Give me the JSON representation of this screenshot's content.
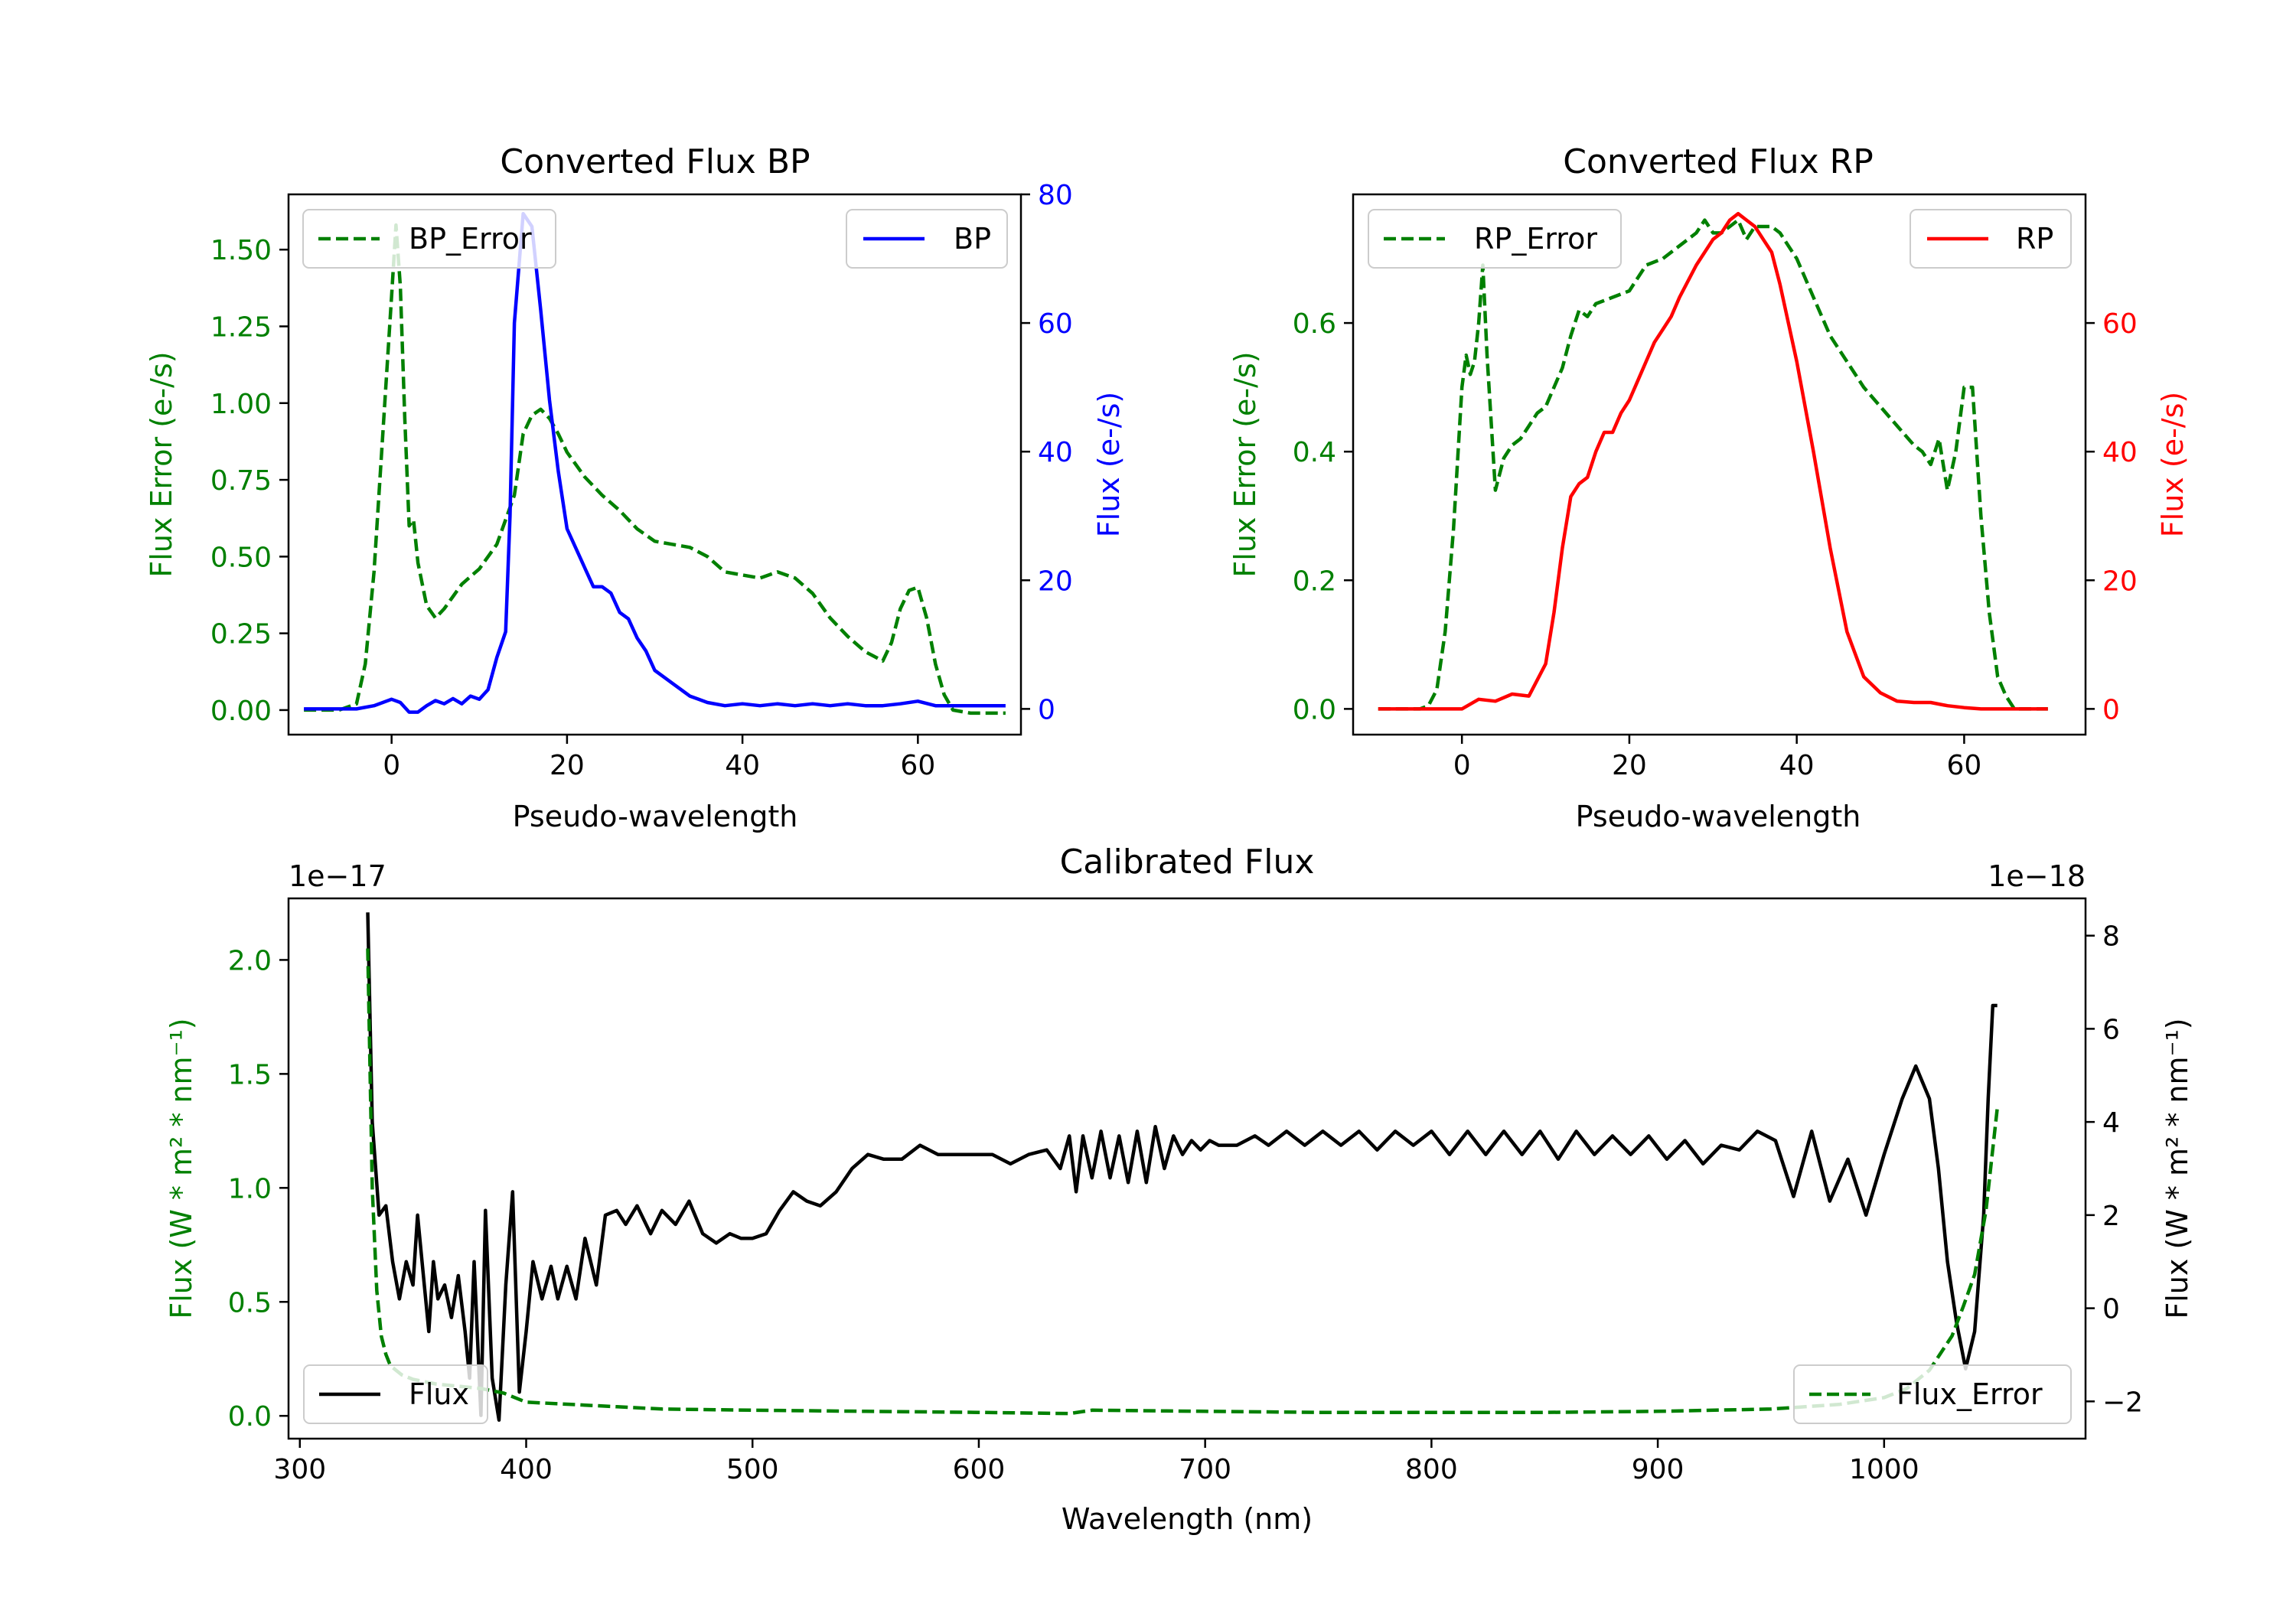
{
  "colors": {
    "error": "#008000",
    "bp": "#0000ff",
    "rp": "#ff0000",
    "flux": "#000000"
  },
  "chart_data": [
    {
      "type": "line",
      "title": "Converted Flux BP",
      "xlabel": "Pseudo-wavelength",
      "ylabel_left": "Flux Error (e-/s)",
      "ylabel_right": "Flux (e-/s)",
      "xlim": [
        -11.75,
        71.75
      ],
      "ylim_left": [
        -0.08,
        1.68
      ],
      "ylim_right": [
        -4,
        80
      ],
      "xticks": [
        "0",
        "20",
        "40",
        "60"
      ],
      "yticks_left": [
        "0.00",
        "0.25",
        "0.50",
        "0.75",
        "1.00",
        "1.25",
        "1.50"
      ],
      "yticks_right": [
        "0",
        "20",
        "40",
        "60",
        "80"
      ],
      "legend_left": "BP_Error",
      "legend_right": "BP",
      "series": [
        {
          "name": "BP_Error",
          "axis": "left",
          "style": "dashed",
          "x": [
            -10,
            -6,
            -4,
            -3,
            -2,
            -1,
            0,
            0.5,
            1,
            1.5,
            2,
            2.5,
            3,
            4,
            5,
            6,
            7,
            8,
            10,
            12,
            14,
            15,
            16,
            17,
            18,
            19,
            20,
            22,
            24,
            26,
            28,
            30,
            32,
            34,
            36,
            38,
            40,
            42,
            44,
            46,
            48,
            50,
            52,
            54,
            56,
            57,
            58,
            59,
            60,
            61,
            62,
            63,
            64,
            66,
            68,
            70
          ],
          "y": [
            0.0,
            0.0,
            0.02,
            0.15,
            0.45,
            0.9,
            1.35,
            1.58,
            1.38,
            0.95,
            0.6,
            0.62,
            0.48,
            0.34,
            0.3,
            0.33,
            0.37,
            0.41,
            0.46,
            0.54,
            0.7,
            0.9,
            0.96,
            0.98,
            0.95,
            0.9,
            0.84,
            0.76,
            0.7,
            0.65,
            0.59,
            0.55,
            0.54,
            0.53,
            0.5,
            0.45,
            0.44,
            0.43,
            0.45,
            0.43,
            0.38,
            0.3,
            0.24,
            0.19,
            0.16,
            0.22,
            0.33,
            0.39,
            0.4,
            0.3,
            0.15,
            0.05,
            0.0,
            -0.01,
            -0.01,
            -0.01
          ]
        },
        {
          "name": "BP",
          "axis": "right",
          "style": "solid",
          "x": [
            -10,
            -4,
            -2,
            0,
            1,
            2,
            3,
            4,
            5,
            6,
            7,
            8,
            9,
            10,
            11,
            12,
            13,
            13.5,
            14,
            15,
            16,
            17,
            18,
            19,
            20,
            21,
            22,
            23,
            24,
            25,
            26,
            27,
            28,
            29,
            30,
            31,
            32,
            33,
            34,
            35,
            36,
            38,
            40,
            42,
            44,
            46,
            48,
            50,
            52,
            54,
            56,
            58,
            60,
            62,
            64,
            66,
            68,
            70
          ],
          "y": [
            0,
            0,
            0.5,
            1.5,
            1,
            -0.5,
            -0.5,
            0.5,
            1.3,
            0.8,
            1.6,
            0.8,
            2.0,
            1.5,
            3.0,
            8.0,
            12.0,
            30,
            60,
            77,
            75,
            62,
            48,
            37,
            28,
            25,
            22,
            19,
            19,
            18,
            15,
            14,
            11,
            9,
            6,
            5,
            4,
            3,
            2,
            1.5,
            1,
            0.5,
            0.8,
            0.5,
            0.8,
            0.5,
            0.8,
            0.5,
            0.8,
            0.5,
            0.5,
            0.8,
            1.2,
            0.5,
            0.5,
            0.5,
            0.5,
            0.5
          ]
        }
      ]
    },
    {
      "type": "line",
      "title": "Converted Flux RP",
      "xlabel": "Pseudo-wavelength",
      "ylabel_left": "Flux Error (e-/s)",
      "ylabel_right": "Flux (e-/s)",
      "xlim": [
        -13.0,
        74.5
      ],
      "ylim_left": [
        -0.04,
        0.8
      ],
      "ylim_right": [
        -4,
        80
      ],
      "xticks": [
        "0",
        "20",
        "40",
        "60"
      ],
      "yticks_left": [
        "0.0",
        "0.2",
        "0.4",
        "0.6"
      ],
      "yticks_right": [
        "0",
        "20",
        "40",
        "60"
      ],
      "legend_left": "RP_Error",
      "legend_right": "RP",
      "series": [
        {
          "name": "RP_Error",
          "axis": "left",
          "style": "dashed",
          "x": [
            -10,
            -5,
            -4,
            -3,
            -2,
            -1,
            0,
            0.5,
            1,
            1.5,
            2,
            2.5,
            3,
            4,
            5,
            6,
            7,
            8,
            9,
            10,
            11,
            12,
            13,
            14,
            15,
            16,
            18,
            20,
            22,
            24,
            26,
            28,
            29,
            30,
            31,
            32,
            33,
            34,
            35,
            36,
            37,
            38,
            39,
            40,
            42,
            44,
            46,
            48,
            50,
            52,
            54,
            55,
            56,
            57,
            58,
            59,
            60,
            61,
            62,
            63,
            64,
            65,
            66,
            68,
            70
          ],
          "y": [
            0,
            0,
            0.005,
            0.03,
            0.12,
            0.28,
            0.5,
            0.55,
            0.52,
            0.54,
            0.6,
            0.69,
            0.55,
            0.34,
            0.39,
            0.41,
            0.42,
            0.44,
            0.46,
            0.47,
            0.5,
            0.53,
            0.58,
            0.62,
            0.61,
            0.63,
            0.64,
            0.65,
            0.69,
            0.7,
            0.72,
            0.74,
            0.76,
            0.74,
            0.74,
            0.75,
            0.76,
            0.73,
            0.75,
            0.75,
            0.75,
            0.74,
            0.72,
            0.7,
            0.64,
            0.58,
            0.54,
            0.5,
            0.47,
            0.44,
            0.41,
            0.4,
            0.38,
            0.42,
            0.34,
            0.4,
            0.5,
            0.5,
            0.3,
            0.15,
            0.05,
            0.02,
            0,
            0,
            0
          ]
        },
        {
          "name": "RP",
          "axis": "right",
          "style": "solid",
          "x": [
            -10,
            -5,
            0,
            2,
            4,
            6,
            8,
            10,
            11,
            12,
            13,
            14,
            15,
            16,
            17,
            18,
            19,
            20,
            21,
            22,
            23,
            24,
            25,
            26,
            28,
            30,
            31,
            32,
            33,
            34,
            35,
            36,
            37,
            38,
            40,
            42,
            44,
            46,
            48,
            50,
            52,
            54,
            56,
            58,
            60,
            62,
            64,
            66,
            70
          ],
          "y": [
            0,
            0,
            0,
            1.5,
            1.2,
            2.3,
            2.0,
            7,
            15,
            25,
            33,
            35,
            36,
            40,
            43,
            43,
            46,
            48,
            51,
            54,
            57,
            59,
            61,
            64,
            69,
            73,
            74,
            76,
            77,
            76,
            75,
            73,
            71,
            66,
            54,
            40,
            25,
            12,
            5,
            2.5,
            1.2,
            1,
            1,
            0.5,
            0.2,
            0,
            0,
            0,
            0
          ]
        }
      ]
    },
    {
      "type": "line",
      "title": "Calibrated Flux",
      "xlabel": "Wavelength (nm)",
      "ylabel_left": "Flux (W * m² * nm⁻¹)",
      "ylabel_right": "Flux (W * m² * nm⁻¹)",
      "offset_left": "1e−17",
      "offset_right": "1e−18",
      "xlim": [
        295,
        1089
      ],
      "ylim_left": [
        -0.1,
        2.27
      ],
      "ylim_right": [
        -2.8,
        8.8
      ],
      "xticks": [
        "300",
        "400",
        "500",
        "600",
        "700",
        "800",
        "900",
        "1000"
      ],
      "yticks_left": [
        "0.0",
        "0.5",
        "1.0",
        "1.5",
        "2.0"
      ],
      "yticks_right": [
        "−2",
        "0",
        "2",
        "4",
        "6",
        "8"
      ],
      "legend_left": "Flux",
      "legend_right": "Flux_Error",
      "series": [
        {
          "name": "Flux",
          "axis": "right",
          "style": "solid",
          "x": [
            330,
            332,
            335,
            338,
            341,
            344,
            347,
            350,
            352,
            355,
            357,
            359,
            361,
            364,
            367,
            370,
            373,
            375,
            377,
            380,
            382,
            385,
            388,
            391,
            394,
            397,
            400,
            403,
            407,
            411,
            414,
            418,
            422,
            426,
            431,
            435,
            440,
            444,
            449,
            455,
            460,
            466,
            472,
            478,
            484,
            490,
            495,
            500,
            506,
            512,
            518,
            524,
            530,
            537,
            544,
            551,
            558,
            566,
            574,
            582,
            590,
            598,
            606,
            614,
            622,
            630,
            636,
            640,
            643,
            646,
            650,
            654,
            658,
            662,
            666,
            670,
            674,
            678,
            682,
            686,
            690,
            694,
            698,
            702,
            706,
            710,
            714,
            718,
            722,
            728,
            736,
            744,
            752,
            760,
            768,
            776,
            784,
            792,
            800,
            808,
            816,
            824,
            832,
            840,
            848,
            856,
            864,
            872,
            880,
            888,
            896,
            904,
            912,
            920,
            928,
            936,
            944,
            952,
            960,
            968,
            976,
            984,
            992,
            1000,
            1008,
            1014,
            1020,
            1024,
            1028,
            1032,
            1036,
            1040,
            1044,
            1046,
            1048,
            1050
          ],
          "y": [
            8.5,
            4,
            2,
            2.2,
            1,
            0.2,
            1,
            0.5,
            2,
            0.5,
            -0.5,
            1,
            0.2,
            0.5,
            -0.2,
            0.7,
            -0.5,
            -1.5,
            1,
            -2.3,
            2.1,
            -1.5,
            -2.4,
            0.5,
            2.5,
            -1.8,
            -0.5,
            1,
            0.2,
            0.9,
            0.2,
            0.9,
            0.2,
            1.5,
            0.5,
            2,
            2.1,
            1.8,
            2.2,
            1.6,
            2.1,
            1.8,
            2.3,
            1.6,
            1.4,
            1.6,
            1.5,
            1.5,
            1.6,
            2.1,
            2.5,
            2.3,
            2.2,
            2.5,
            3.0,
            3.3,
            3.2,
            3.2,
            3.5,
            3.3,
            3.3,
            3.3,
            3.3,
            3.1,
            3.3,
            3.4,
            3.0,
            3.7,
            2.5,
            3.7,
            2.8,
            3.8,
            2.8,
            3.7,
            2.7,
            3.8,
            2.7,
            3.9,
            3.0,
            3.7,
            3.3,
            3.6,
            3.4,
            3.6,
            3.5,
            3.5,
            3.5,
            3.6,
            3.7,
            3.5,
            3.8,
            3.5,
            3.8,
            3.5,
            3.8,
            3.4,
            3.8,
            3.5,
            3.8,
            3.3,
            3.8,
            3.3,
            3.8,
            3.3,
            3.8,
            3.2,
            3.8,
            3.3,
            3.7,
            3.3,
            3.7,
            3.2,
            3.6,
            3.1,
            3.5,
            3.4,
            3.8,
            3.6,
            2.4,
            3.8,
            2.3,
            3.2,
            2.0,
            3.3,
            4.5,
            5.2,
            4.5,
            3.0,
            1.0,
            -0.3,
            -1.3,
            -0.5,
            2.0,
            4.5,
            6.5,
            6.5
          ]
        },
        {
          "name": "Flux_Error",
          "axis": "left",
          "style": "dashed",
          "x": [
            330,
            332,
            334,
            336,
            338,
            340,
            345,
            350,
            360,
            370,
            380,
            390,
            400,
            420,
            440,
            460,
            500,
            550,
            600,
            640,
            650,
            700,
            750,
            800,
            850,
            900,
            950,
            980,
            1000,
            1010,
            1020,
            1030,
            1035,
            1040,
            1045,
            1050
          ],
          "y": [
            2.05,
            1.0,
            0.55,
            0.35,
            0.27,
            0.22,
            0.18,
            0.16,
            0.14,
            0.13,
            0.12,
            0.1,
            0.06,
            0.05,
            0.04,
            0.03,
            0.025,
            0.02,
            0.015,
            0.01,
            0.025,
            0.02,
            0.015,
            0.015,
            0.015,
            0.02,
            0.03,
            0.05,
            0.08,
            0.12,
            0.2,
            0.35,
            0.48,
            0.62,
            0.9,
            1.35
          ]
        }
      ]
    }
  ]
}
